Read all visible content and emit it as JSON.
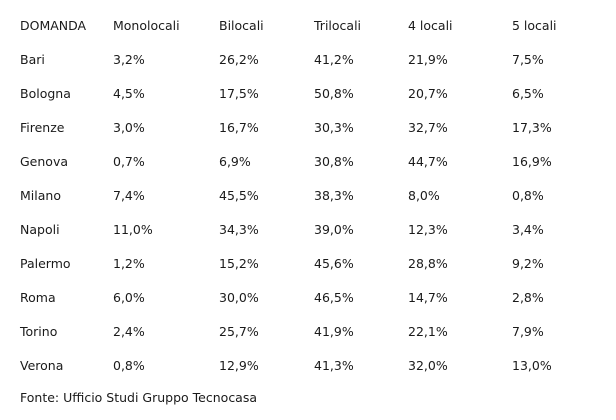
{
  "table": {
    "headers": [
      "DOMANDA",
      "Monolocali",
      "Bilocali",
      "Trilocali",
      "4 locali",
      "5 locali"
    ],
    "rows": [
      [
        "Bari",
        "3,2%",
        "26,2%",
        "41,2%",
        "21,9%",
        "7,5%"
      ],
      [
        "Bologna",
        "4,5%",
        "17,5%",
        "50,8%",
        "20,7%",
        "6,5%"
      ],
      [
        "Firenze",
        "3,0%",
        "16,7%",
        "30,3%",
        "32,7%",
        "17,3%"
      ],
      [
        "Genova",
        "0,7%",
        "6,9%",
        "30,8%",
        "44,7%",
        "16,9%"
      ],
      [
        "Milano",
        "7,4%",
        "45,5%",
        "38,3%",
        "8,0%",
        "0,8%"
      ],
      [
        "Napoli",
        "11,0%",
        "34,3%",
        "39,0%",
        "12,3%",
        "3,4%"
      ],
      [
        "Palermo",
        "1,2%",
        "15,2%",
        "45,6%",
        "28,8%",
        "9,2%"
      ],
      [
        "Roma",
        "6,0%",
        "30,0%",
        "46,5%",
        "14,7%",
        "2,8%"
      ],
      [
        "Torino",
        "2,4%",
        "25,7%",
        "41,9%",
        "22,1%",
        "7,9%"
      ],
      [
        "Verona",
        "0,8%",
        "12,9%",
        "41,3%",
        "32,0%",
        "13,0%"
      ]
    ]
  },
  "source": "Fonte: Ufficio Studi Gruppo Tecnocasa",
  "colors": {
    "text": "#1a1a1a",
    "background": "#ffffff"
  }
}
